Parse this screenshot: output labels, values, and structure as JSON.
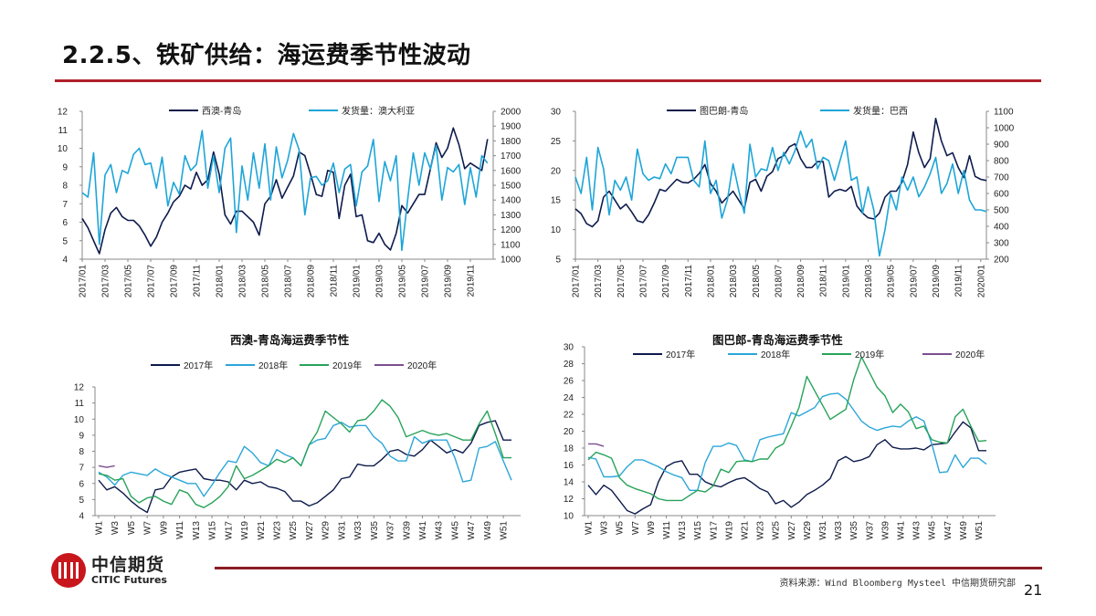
{
  "header": {
    "title": "2.2.5、铁矿供给：海运费季节性波动"
  },
  "footer": {
    "logo_cn": "中信期货",
    "logo_en": "CITIC Futures",
    "source": "资料来源：Wind Bloomberg Mysteel 中信期货研究部",
    "page_number": "21"
  },
  "chart_data": [
    {
      "type": "line",
      "title": "",
      "left_axis": {
        "ylim": [
          4,
          12
        ],
        "ticks": [
          "4",
          "5",
          "6",
          "7",
          "8",
          "9",
          "10",
          "11",
          "12"
        ]
      },
      "right_axis": {
        "ylim": [
          1000,
          2000
        ],
        "ticks": [
          "1000",
          "1100",
          "1200",
          "1300",
          "1400",
          "1500",
          "1600",
          "1700",
          "1800",
          "1900",
          "2000"
        ]
      },
      "x_tick_labels": [
        "2017/01",
        "2017/03",
        "2017/05",
        "2017/07",
        "2017/09",
        "2017/11",
        "2018/01",
        "2018/03",
        "2018/05",
        "2018/07",
        "2018/09",
        "2018/11",
        "2019/01",
        "2019/03",
        "2019/05",
        "2019/07",
        "2019/09",
        "2019/11"
      ],
      "legend": "top",
      "series": [
        {
          "name": "西澳-青岛",
          "axis": "left",
          "color": "#0d1b4c",
          "values": [
            6.2,
            5.7,
            5.0,
            4.3,
            5.6,
            6.5,
            6.8,
            6.3,
            6.1,
            6.1,
            5.8,
            5.3,
            4.7,
            5.2,
            6.0,
            6.5,
            7.1,
            7.4,
            8.0,
            7.8,
            8.7,
            8.0,
            8.3,
            9.8,
            8.6,
            6.4,
            5.9,
            6.6,
            6.6,
            6.3,
            6.0,
            5.3,
            7.0,
            7.4,
            8.3,
            7.3,
            7.9,
            8.5,
            9.8,
            9.6,
            8.6,
            7.5,
            7.4,
            8.8,
            8.7,
            6.2,
            8.0,
            8.6,
            6.3,
            6.4,
            5.0,
            4.9,
            5.4,
            4.8,
            4.5,
            5.4,
            6.9,
            6.5,
            7.0,
            7.5,
            7.5,
            8.9,
            10.3,
            9.5,
            10.0,
            11.1,
            10.2,
            8.9,
            9.2,
            9.0,
            8.8,
            10.5
          ]
        },
        {
          "name": "发货量：澳大利亚",
          "axis": "right",
          "color": "#1ea5d8",
          "values": [
            1450,
            1420,
            1720,
            1100,
            1570,
            1640,
            1450,
            1600,
            1580,
            1710,
            1750,
            1640,
            1650,
            1480,
            1690,
            1360,
            1520,
            1440,
            1700,
            1600,
            1640,
            1870,
            1480,
            1700,
            1450,
            1750,
            1820,
            1180,
            1630,
            1400,
            1720,
            1480,
            1780,
            1400,
            1760,
            1550,
            1670,
            1850,
            1740,
            1300,
            1550,
            1560,
            1500,
            1530,
            1650,
            1450,
            1610,
            1640,
            1360,
            1590,
            1630,
            1810,
            1390,
            1660,
            1530,
            1700,
            1060,
            1400,
            1720,
            1500,
            1720,
            1610,
            1770,
            1400,
            1620,
            1590,
            1640,
            1370,
            1620,
            1420,
            1700,
            1650
          ]
        }
      ]
    },
    {
      "type": "line",
      "title": "",
      "left_axis": {
        "ylim": [
          5,
          30
        ],
        "ticks": [
          "5",
          "10",
          "15",
          "20",
          "25",
          "30"
        ]
      },
      "right_axis": {
        "ylim": [
          200,
          1100
        ],
        "ticks": [
          "200",
          "300",
          "400",
          "500",
          "600",
          "700",
          "800",
          "900",
          "1000",
          "1100"
        ]
      },
      "x_tick_labels": [
        "2017/01",
        "2017/03",
        "2017/05",
        "2017/07",
        "2017/09",
        "2017/11",
        "2018/01",
        "2018/03",
        "2018/05",
        "2018/07",
        "2018/09",
        "2018/11",
        "2019/01",
        "2019/03",
        "2019/05",
        "2019/07",
        "2019/09",
        "2019/11",
        "2020/01"
      ],
      "legend": "top",
      "series": [
        {
          "name": "图巴朗-青岛",
          "axis": "left",
          "color": "#0d1b4c",
          "values": [
            13.5,
            12.7,
            11.0,
            10.5,
            11.5,
            15.5,
            16.5,
            15.0,
            13.5,
            14.3,
            13.0,
            11.5,
            11.2,
            12.5,
            14.5,
            16.8,
            16.5,
            17.5,
            18.5,
            18.0,
            17.9,
            18.5,
            19.5,
            21.0,
            17.8,
            16.5,
            14.5,
            15.5,
            16.5,
            15.0,
            13.5,
            18.0,
            18.5,
            16.5,
            19.0,
            19.8,
            22.0,
            22.5,
            24.0,
            24.5,
            22.0,
            20.5,
            20.5,
            21.5,
            21.5,
            15.5,
            16.5,
            16.8,
            16.5,
            17.3,
            14.0,
            12.8,
            12.0,
            11.8,
            12.8,
            15.5,
            16.5,
            16.5,
            18.0,
            21.0,
            26.5,
            23.0,
            20.5,
            22.0,
            28.8,
            25.0,
            22.5,
            23.0,
            20.5,
            18.8,
            22.5,
            19.0,
            18.5,
            18.3
          ]
        },
        {
          "name": "发货量：巴西",
          "axis": "right",
          "color": "#1ea5d8",
          "values": [
            700,
            600,
            820,
            500,
            880,
            750,
            470,
            680,
            620,
            700,
            560,
            870,
            720,
            680,
            700,
            690,
            780,
            720,
            820,
            820,
            820,
            680,
            640,
            920,
            600,
            680,
            450,
            560,
            780,
            620,
            480,
            900,
            700,
            750,
            740,
            880,
            740,
            850,
            780,
            860,
            980,
            880,
            930,
            750,
            820,
            800,
            680,
            800,
            920,
            680,
            700,
            480,
            640,
            500,
            220,
            380,
            600,
            500,
            700,
            620,
            700,
            580,
            640,
            720,
            820,
            600,
            660,
            780,
            600,
            740,
            560,
            500,
            500,
            490
          ]
        }
      ]
    },
    {
      "type": "line",
      "title": "西澳-青岛海运费季节性",
      "left_axis": {
        "ylim": [
          4,
          12
        ],
        "ticks": [
          "4",
          "5",
          "6",
          "7",
          "8",
          "9",
          "10",
          "11",
          "12"
        ]
      },
      "x_tick_labels": [
        "W1",
        "W3",
        "W5",
        "W7",
        "W9",
        "W11",
        "W13",
        "W15",
        "W17",
        "W19",
        "W21",
        "W23",
        "W25",
        "W27",
        "W29",
        "W31",
        "W33",
        "W35",
        "W37",
        "W39",
        "W41",
        "W43",
        "W45",
        "W47",
        "W49",
        "W51"
      ],
      "legend": "top",
      "series": [
        {
          "name": "2017年",
          "axis": "left",
          "color": "#0d1b4c",
          "values": [
            6.2,
            5.6,
            5.8,
            5.4,
            4.9,
            4.5,
            4.2,
            5.6,
            5.7,
            6.4,
            6.7,
            6.8,
            6.9,
            6.3,
            6.2,
            6.2,
            6.1,
            5.6,
            6.2,
            6.0,
            6.1,
            5.8,
            5.7,
            5.5,
            4.9,
            4.9,
            4.6,
            4.8,
            5.2,
            5.6,
            6.3,
            6.4,
            7.2,
            7.1,
            7.1,
            7.5,
            8.0,
            8.1,
            7.8,
            7.7,
            8.1,
            8.7,
            8.3,
            7.9,
            8.1,
            7.9,
            8.5,
            9.6,
            9.8,
            9.9,
            8.7,
            8.7
          ]
        },
        {
          "name": "2018年",
          "axis": "left",
          "color": "#2ca6d9",
          "values": [
            6.7,
            6.4,
            5.9,
            6.5,
            6.7,
            6.6,
            6.5,
            6.9,
            6.6,
            6.4,
            6.2,
            6.0,
            6.0,
            5.2,
            5.9,
            6.7,
            7.4,
            7.3,
            8.3,
            7.9,
            7.3,
            7.1,
            8.1,
            7.8,
            7.6,
            7.1,
            8.4,
            8.7,
            8.8,
            9.6,
            9.8,
            9.5,
            9.6,
            9.6,
            8.9,
            8.5,
            7.7,
            7.4,
            7.4,
            8.9,
            8.5,
            8.7,
            8.7,
            8.7,
            7.6,
            6.1,
            6.2,
            8.2,
            8.3,
            8.6,
            7.4,
            6.2
          ]
        },
        {
          "name": "2019年",
          "axis": "left",
          "color": "#27a35a",
          "values": [
            6.6,
            6.5,
            6.2,
            6.3,
            5.2,
            4.8,
            5.1,
            5.2,
            4.9,
            4.7,
            5.6,
            5.4,
            4.7,
            4.5,
            4.8,
            5.2,
            5.8,
            7.1,
            6.3,
            6.5,
            6.8,
            7.1,
            7.5,
            7.3,
            7.6,
            7.1,
            8.4,
            9.2,
            10.5,
            10.1,
            9.7,
            9.2,
            9.9,
            10.0,
            10.5,
            11.2,
            10.8,
            10.1,
            8.9,
            9.1,
            9.3,
            9.1,
            9.0,
            9.1,
            8.9,
            8.7,
            8.7,
            9.7,
            10.5,
            9.1,
            7.6,
            7.6
          ]
        },
        {
          "name": "2020年",
          "axis": "left",
          "color": "#7b4f8f",
          "values": [
            7.1,
            7.0,
            7.1
          ]
        }
      ]
    },
    {
      "type": "line",
      "title": "图巴郎-青岛海运费季节性",
      "left_axis": {
        "ylim": [
          10,
          30
        ],
        "ticks": [
          "10",
          "12",
          "14",
          "16",
          "18",
          "20",
          "22",
          "24",
          "26",
          "28",
          "30"
        ]
      },
      "x_tick_labels": [
        "W1",
        "W3",
        "W5",
        "W7",
        "W9",
        "W11",
        "W13",
        "W15",
        "W17",
        "W19",
        "W21",
        "W23",
        "W25",
        "W27",
        "W29",
        "W31",
        "W33",
        "W35",
        "W37",
        "W39",
        "W41",
        "W43",
        "W45",
        "W47",
        "W49",
        "W51"
      ],
      "legend": "top",
      "series": [
        {
          "name": "2017年",
          "axis": "left",
          "color": "#0d1b4c",
          "values": [
            13.6,
            12.5,
            13.6,
            13.0,
            11.8,
            10.6,
            10.2,
            10.8,
            11.3,
            14.0,
            15.8,
            16.3,
            16.5,
            14.9,
            14.9,
            14.0,
            13.6,
            13.4,
            13.9,
            14.3,
            14.5,
            13.9,
            13.2,
            12.8,
            11.4,
            11.8,
            11.0,
            11.6,
            12.5,
            13.0,
            13.6,
            14.4,
            16.5,
            17.0,
            16.4,
            16.6,
            17.0,
            18.4,
            19.0,
            18.1,
            17.9,
            17.9,
            18.0,
            17.8,
            18.4,
            18.5,
            18.6,
            19.9,
            21.1,
            20.4,
            17.7,
            17.7
          ]
        },
        {
          "name": "2018年",
          "axis": "left",
          "color": "#2ca6d9",
          "values": [
            16.9,
            16.7,
            14.6,
            14.6,
            14.7,
            15.8,
            16.6,
            16.6,
            16.2,
            15.8,
            15.2,
            14.8,
            14.5,
            13.0,
            13.0,
            16.3,
            18.2,
            18.2,
            18.6,
            18.3,
            16.6,
            16.4,
            19.0,
            19.3,
            19.5,
            19.7,
            22.2,
            21.8,
            22.3,
            22.8,
            24.1,
            24.4,
            24.5,
            23.8,
            22.5,
            21.2,
            20.5,
            20.1,
            20.4,
            20.6,
            20.5,
            21.2,
            21.7,
            21.2,
            18.5,
            15.1,
            15.2,
            17.2,
            15.7,
            16.8,
            16.8,
            16.1
          ]
        },
        {
          "name": "2019年",
          "axis": "left",
          "color": "#27a35a",
          "values": [
            16.6,
            17.5,
            17.2,
            16.8,
            14.5,
            13.6,
            13.2,
            12.9,
            12.6,
            12.0,
            11.8,
            11.8,
            11.8,
            12.4,
            13.0,
            12.8,
            13.5,
            15.5,
            15.1,
            16.4,
            16.5,
            16.4,
            16.7,
            16.7,
            18.0,
            18.5,
            20.6,
            22.8,
            26.5,
            24.8,
            23.1,
            21.4,
            22.0,
            22.6,
            26.1,
            28.8,
            27.0,
            25.2,
            24.2,
            22.2,
            23.2,
            22.3,
            20.3,
            20.6,
            19.0,
            18.7,
            18.6,
            21.7,
            22.6,
            20.6,
            18.8,
            18.9
          ]
        },
        {
          "name": "2020年",
          "axis": "left",
          "color": "#7b4f8f",
          "values": [
            18.5,
            18.5,
            18.2
          ]
        }
      ]
    }
  ]
}
